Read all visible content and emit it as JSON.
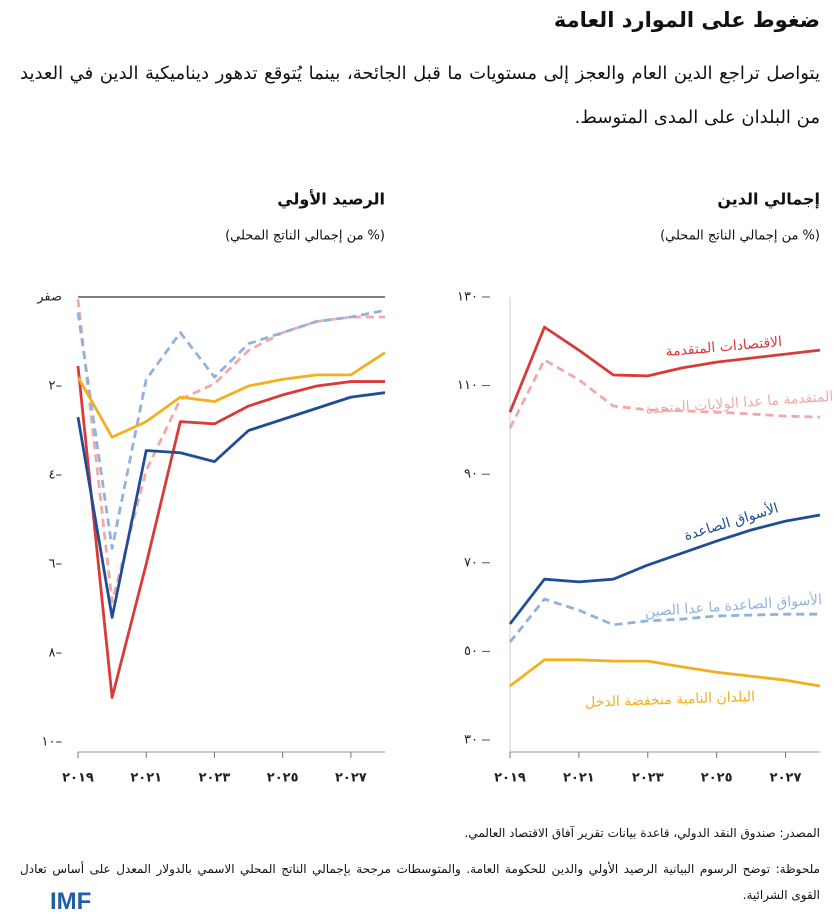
{
  "title": "ضغوط على الموارد العامة",
  "subtitle": "يتواصل تراجع الدين العام والعجز إلى مستويات ما قبل الجائحة، بينما يُتوقع تدهور ديناميكية الدين في العديد من البلدان على المدى المتوسط.",
  "chart_data": [
    {
      "type": "line",
      "title": "إجمالي الدين",
      "subtitle": "(% من إجمالي الناتج المحلي)",
      "x": [
        2019,
        2020,
        2021,
        2022,
        2023,
        2024,
        2025,
        2026,
        2027,
        2028
      ],
      "xlim": [
        2019,
        2028
      ],
      "xticks": [
        {
          "value": 2019,
          "label": "٢٠١٩"
        },
        {
          "value": 2021,
          "label": "٢٠٢١"
        },
        {
          "value": 2023,
          "label": "٢٠٢٣"
        },
        {
          "value": 2025,
          "label": "٢٠٢٥"
        },
        {
          "value": 2027,
          "label": "٢٠٢٧"
        }
      ],
      "ylim": [
        30,
        130
      ],
      "yticks": [
        {
          "value": 30,
          "label": "٣٠"
        },
        {
          "value": 50,
          "label": "٥٠"
        },
        {
          "value": 70,
          "label": "٧٠"
        },
        {
          "value": 90,
          "label": "٩٠"
        },
        {
          "value": 110,
          "label": "١١٠"
        },
        {
          "value": 130,
          "label": "١٣٠"
        }
      ],
      "series": [
        {
          "name": "الاقتصادات المتقدمة",
          "color": "#d93a3a",
          "dashed": false,
          "values": [
            104,
            123.2,
            118,
            112.4,
            112.2,
            114,
            115.3,
            116.2,
            117.1,
            118
          ]
        },
        {
          "name": "الاقتصادات المتقدمة ما عدا الولايات المتحدة",
          "color": "#f2a8a8",
          "dashed": true,
          "values": [
            100.4,
            115.8,
            111.3,
            105.4,
            104.5,
            104.3,
            104,
            103.6,
            103.1,
            102.9
          ]
        },
        {
          "name": "الأسواق الصاعدة",
          "color": "#1f4e96",
          "dashed": false,
          "values": [
            56.2,
            66.3,
            65.7,
            66.3,
            69.5,
            72.2,
            74.9,
            77.4,
            79.4,
            80.8
          ]
        },
        {
          "name": "الأسواق الصاعدة ما عدا الصين",
          "color": "#8fb3de",
          "dashed": true,
          "values": [
            52.1,
            61.8,
            59.3,
            56,
            56.9,
            57.3,
            58,
            58.2,
            58.4,
            58.4
          ]
        },
        {
          "name": "البلدان النامية منخفضة الدخل",
          "color": "#f2b01e",
          "dashed": false,
          "values": [
            42.2,
            48.1,
            48.1,
            47.8,
            47.8,
            46.5,
            45.3,
            44.4,
            43.5,
            42.2
          ]
        }
      ]
    },
    {
      "type": "line",
      "title": "الرصيد الأولي",
      "subtitle": "(% من إجمالي الناتج المحلي)",
      "x": [
        2019,
        2020,
        2021,
        2022,
        2023,
        2024,
        2025,
        2026,
        2027,
        2028
      ],
      "xlim": [
        2019,
        2028
      ],
      "xticks": [
        {
          "value": 2019,
          "label": "٢٠١٩"
        },
        {
          "value": 2021,
          "label": "٢٠٢١"
        },
        {
          "value": 2023,
          "label": "٢٠٢٣"
        },
        {
          "value": 2025,
          "label": "٢٠٢٥"
        },
        {
          "value": 2027,
          "label": "٢٠٢٧"
        }
      ],
      "ylim": [
        -10,
        0
      ],
      "yticks": [
        {
          "value": 0,
          "label": "صفر"
        },
        {
          "value": -2,
          "label": "٢–"
        },
        {
          "value": -4,
          "label": "٤–"
        },
        {
          "value": -6,
          "label": "٦–"
        },
        {
          "value": -8,
          "label": "٨–"
        },
        {
          "value": -10,
          "label": "١٠–"
        }
      ],
      "zero_line": true,
      "series": [
        {
          "color": "#d93a3a",
          "dashed": false,
          "values": [
            -1.55,
            -9,
            -6,
            -2.8,
            -2.85,
            -2.45,
            -2.2,
            -2,
            -1.9,
            -1.9
          ]
        },
        {
          "color": "#f2a8a8",
          "dashed": true,
          "values": [
            -0.05,
            -6.85,
            -3.9,
            -2.3,
            -1.95,
            -1.2,
            -0.8,
            -0.55,
            -0.45,
            -0.45
          ]
        },
        {
          "color": "#1f4e96",
          "dashed": false,
          "values": [
            -2.7,
            -7.2,
            -3.45,
            -3.5,
            -3.7,
            -3,
            -2.75,
            -2.5,
            -2.25,
            -2.15
          ]
        },
        {
          "color": "#8fb3de",
          "dashed": true,
          "values": [
            -0.35,
            -5.65,
            -1.85,
            -0.8,
            -1.8,
            -1.05,
            -0.8,
            -0.55,
            -0.45,
            -0.3
          ]
        },
        {
          "color": "#f2b01e",
          "dashed": false,
          "values": [
            -1.8,
            -3.15,
            -2.8,
            -2.25,
            -2.35,
            -2,
            -1.85,
            -1.75,
            -1.75,
            -1.25
          ]
        }
      ]
    }
  ],
  "source": "المصدر: صندوق النقد الدولي، قاعدة بيانات تقرير آفاق الاقتصاد العالمي.",
  "note": "ملحوظة: توضح الرسوم البيانية الرصيد الأولي والدين للحكومة العامة. والمتوسطات مرجحة بإجمالي الناتج المحلي الاسمي بالدولار المعدل على أساس تعادل القوى الشرائية.",
  "logo": "IMF"
}
